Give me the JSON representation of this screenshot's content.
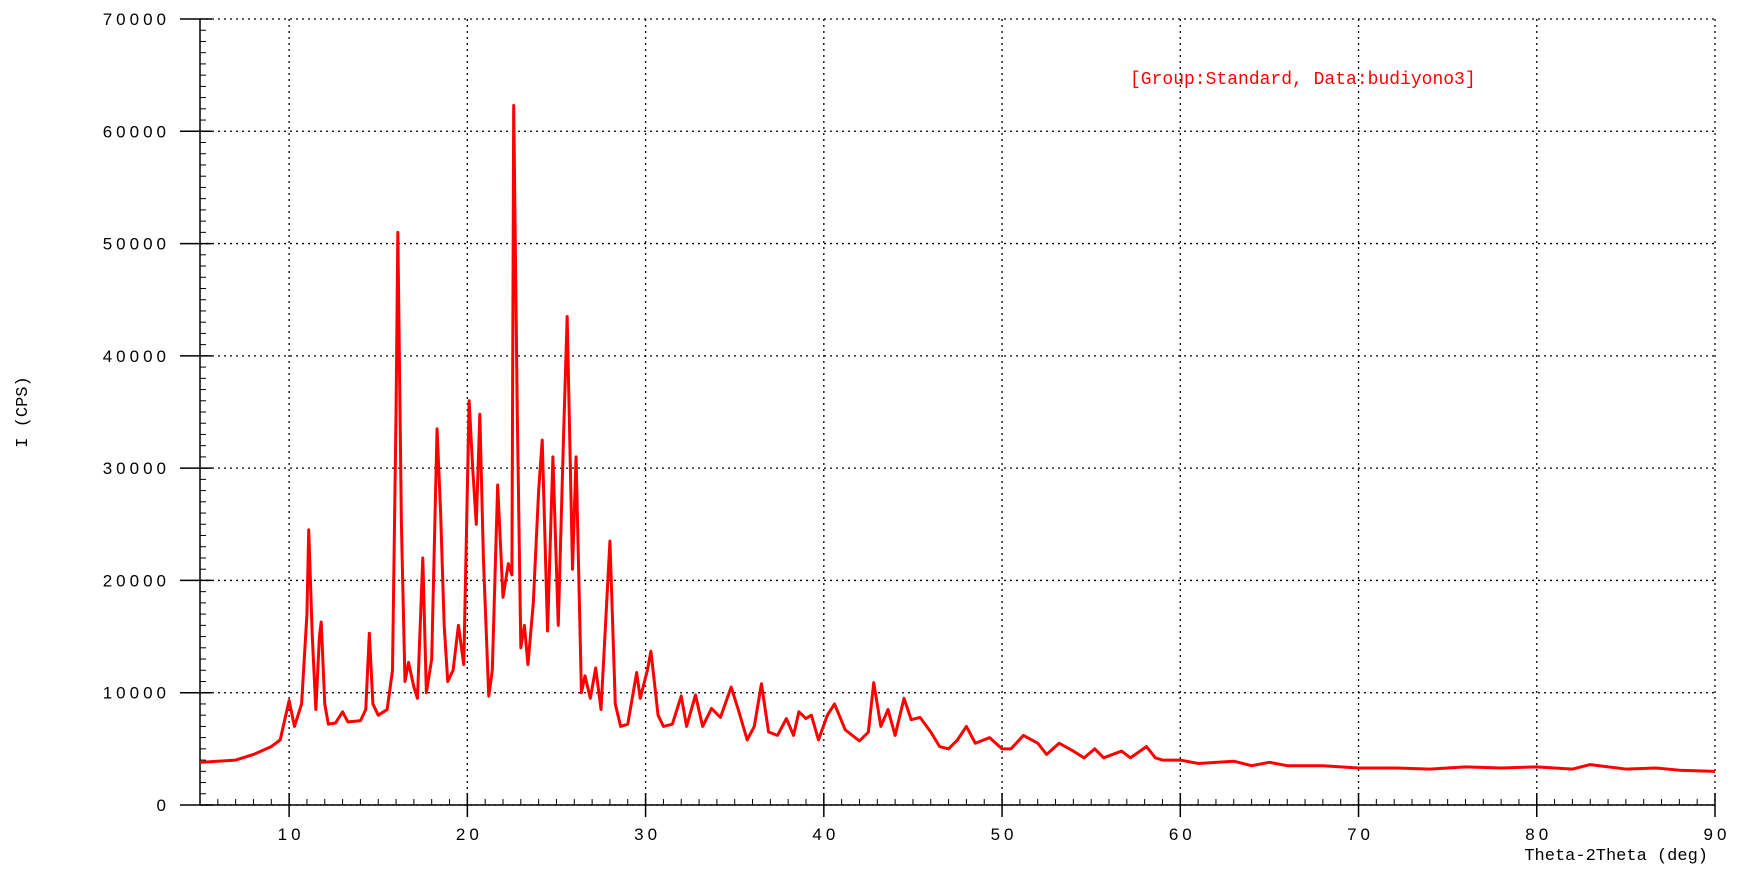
{
  "chart_data": {
    "type": "line",
    "annotation": "[Group:Standard, Data:budiyono3]",
    "xlabel": "Theta-2Theta (deg)",
    "ylabel": "I (CPS)",
    "xlim": [
      5,
      90
    ],
    "ylim": [
      0,
      70000
    ],
    "xticks": [
      10,
      20,
      30,
      40,
      50,
      60,
      70,
      80,
      90
    ],
    "yticks": [
      0,
      10000,
      20000,
      30000,
      40000,
      50000,
      60000,
      70000
    ],
    "grid": true,
    "x": [
      5,
      6,
      7,
      8,
      9,
      9.5,
      10,
      10.3,
      10.7,
      11,
      11.1,
      11.3,
      11.5,
      11.7,
      11.8,
      12,
      12.2,
      12.6,
      13,
      13.3,
      14,
      14.3,
      14.5,
      14.7,
      15,
      15.5,
      15.8,
      16,
      16.1,
      16.3,
      16.5,
      16.7,
      17,
      17.2,
      17.5,
      17.7,
      18,
      18.3,
      18.5,
      18.7,
      18.9,
      19.2,
      19.5,
      19.8,
      20.1,
      20.3,
      20.5,
      20.7,
      20.9,
      21.2,
      21.4,
      21.7,
      22,
      22.3,
      22.5,
      22.6,
      22.8,
      23,
      23.2,
      23.4,
      23.7,
      24,
      24.2,
      24.5,
      24.8,
      25.1,
      25.4,
      25.6,
      25.9,
      26.1,
      26.4,
      26.6,
      26.9,
      27.2,
      27.5,
      28,
      28.3,
      28.6,
      29,
      29.5,
      29.7,
      30.1,
      30.3,
      30.7,
      31,
      31.5,
      32,
      32.3,
      32.8,
      33.2,
      33.7,
      34.2,
      34.8,
      35.2,
      35.7,
      36.1,
      36.5,
      36.9,
      37.4,
      37.9,
      38.3,
      38.6,
      39,
      39.3,
      39.7,
      40.2,
      40.6,
      41.2,
      42,
      42.5,
      42.8,
      43.2,
      43.6,
      44,
      44.5,
      44.9,
      45.4,
      46,
      46.5,
      47,
      47.5,
      48,
      48.5,
      49.3,
      50,
      50.5,
      51.2,
      52,
      52.5,
      53.2,
      54,
      54.6,
      55.2,
      55.7,
      56.7,
      57.2,
      58.1,
      58.6,
      59,
      60,
      61,
      62,
      63,
      64,
      65,
      66,
      68,
      70,
      72,
      74,
      76,
      78,
      80,
      82,
      83,
      85,
      86.7,
      88,
      90
    ],
    "series": [
      {
        "color": "#ff0000",
        "values": [
          3800,
          3900,
          4000,
          4500,
          5200,
          5800,
          9300,
          7000,
          9000,
          17000,
          24500,
          15000,
          8500,
          15000,
          16300,
          9000,
          7200,
          7300,
          8300,
          7400,
          7500,
          8500,
          15300,
          9000,
          8000,
          8500,
          12000,
          35000,
          51000,
          25000,
          11000,
          12700,
          10500,
          9500,
          22000,
          10000,
          13000,
          33500,
          26000,
          16000,
          11000,
          12000,
          16000,
          12500,
          36000,
          30000,
          25000,
          34800,
          22000,
          9700,
          12000,
          28500,
          18500,
          21500,
          20500,
          62300,
          35000,
          14000,
          16000,
          12500,
          18000,
          28000,
          32500,
          15500,
          31000,
          16000,
          33000,
          43500,
          21000,
          31000,
          10000,
          11500,
          9500,
          12200,
          8500,
          23500,
          9000,
          7000,
          7200,
          11800,
          9500,
          12000,
          13700,
          8000,
          7000,
          7200,
          9700,
          7000,
          9800,
          7000,
          8600,
          7800,
          10500,
          8500,
          5800,
          7000,
          10800,
          6500,
          6200,
          7700,
          6200,
          8300,
          7700,
          8000,
          5800,
          8000,
          9000,
          6700,
          5700,
          6500,
          10900,
          7000,
          8500,
          6200,
          9500,
          7600,
          7800,
          6500,
          5200,
          5000,
          5800,
          7000,
          5500,
          6000,
          5000,
          5000,
          6200,
          5500,
          4500,
          5500,
          4800,
          4200,
          5000,
          4200,
          4800,
          4200,
          5200,
          4200,
          4000,
          4000,
          3700,
          3800,
          3900,
          3500,
          3800,
          3500,
          3500,
          3300,
          3300,
          3200,
          3400,
          3300,
          3400,
          3200,
          3600,
          3200,
          3300,
          3100,
          3000
        ]
      }
    ]
  }
}
